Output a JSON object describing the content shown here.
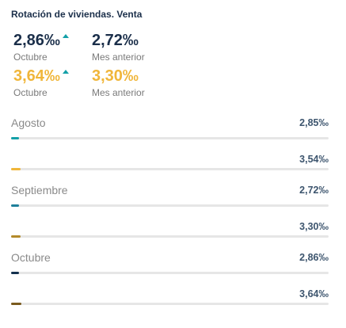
{
  "widget": {
    "title": "Rotación de viviendas. Venta"
  },
  "kpis": [
    {
      "value": "2,86‰",
      "trend": "up",
      "label": "Octubre",
      "color": "#1b2f4a"
    },
    {
      "value": "2,72‰",
      "label": "Mes anterior",
      "color": "#1b2f4a"
    },
    {
      "value": "3,64‰",
      "trend": "up",
      "label": "Octubre",
      "color": "#f0b63a"
    },
    {
      "value": "3,30‰",
      "label": "Mes anterior",
      "color": "#f0b63a"
    }
  ],
  "chart_data": {
    "type": "bar",
    "orientation": "horizontal",
    "groups": [
      {
        "label": "Agosto",
        "rows": [
          {
            "value": 2.85,
            "display": "2,85‰",
            "color": "#13a0a8"
          },
          {
            "value": 3.54,
            "display": "3,54‰",
            "color": "#f0b63a"
          }
        ]
      },
      {
        "label": "Septiembre",
        "rows": [
          {
            "value": 2.72,
            "display": "2,72‰",
            "color": "#1e7f9a"
          },
          {
            "value": 3.3,
            "display": "3,30‰",
            "color": "#b38a2a"
          }
        ]
      },
      {
        "label": "Octubre",
        "rows": [
          {
            "value": 2.86,
            "display": "2,86‰",
            "color": "#13304e"
          },
          {
            "value": 3.64,
            "display": "3,64‰",
            "color": "#7a5a1e"
          }
        ]
      }
    ],
    "bar_fraction_of_track": [
      0.025,
      0.031,
      0.024,
      0.029,
      0.025,
      0.032
    ]
  }
}
